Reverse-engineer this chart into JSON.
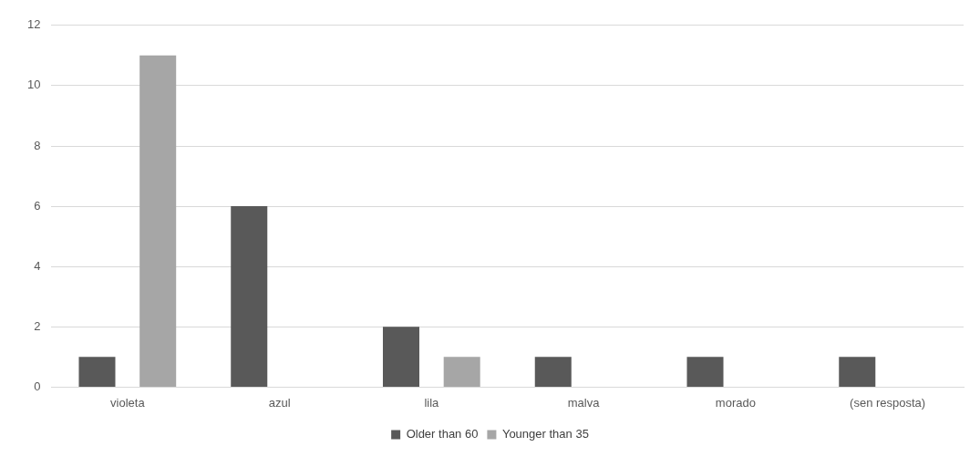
{
  "chart_data": {
    "type": "bar",
    "categories": [
      "violeta",
      "azul",
      "lila",
      "malva",
      "morado",
      "(sen resposta)"
    ],
    "series": [
      {
        "name": "Older than 60",
        "color": "#595959",
        "values": [
          1,
          6,
          2,
          1,
          1,
          1
        ]
      },
      {
        "name": "Younger than 35",
        "color": "#a6a6a6",
        "values": [
          11,
          0,
          1,
          0,
          0,
          0
        ]
      }
    ],
    "ylim": [
      0,
      12
    ],
    "yticks": [
      0,
      2,
      4,
      6,
      8,
      10,
      12
    ],
    "grid": "y",
    "legend": "bottom"
  }
}
